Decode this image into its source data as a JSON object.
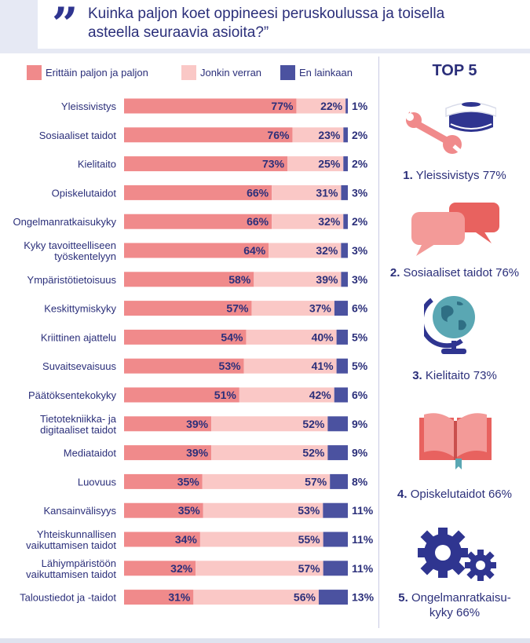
{
  "header": {
    "quote_glyph": "”",
    "title": "Kuinka paljon koet oppineesi peruskoulussa ja toisella asteella seuraavia asioita?”"
  },
  "colors": {
    "a_lot": "#f08a8b",
    "some": "#fac8c6",
    "none": "#4b52a0",
    "text": "#2b2f7a"
  },
  "legend": {
    "a_lot": "Erittäin paljon ja paljon",
    "some": "Jonkin verran",
    "none": "En lainkaan"
  },
  "top5": {
    "title": "TOP 5",
    "items": [
      {
        "rank": "1.",
        "text": "Yleissivistys 77%",
        "icon": "wrench-and-graduation-cap-icon"
      },
      {
        "rank": "2.",
        "text": "Sosiaaliset taidot 76%",
        "icon": "speech-bubbles-icon"
      },
      {
        "rank": "3.",
        "text": "Kielitaito 73%",
        "icon": "globe-icon"
      },
      {
        "rank": "4.",
        "text": "Opiskelutaidot 66%",
        "icon": "open-book-icon"
      },
      {
        "rank": "5.",
        "text": "Ongelmanratkaisu-",
        "text2": "kyky 66%",
        "icon": "gears-icon"
      }
    ]
  },
  "chart_data": {
    "type": "bar",
    "orientation": "horizontal",
    "stacked": true,
    "unit": "%",
    "categories": [
      [
        "Yleissivistys"
      ],
      [
        "Sosiaaliset taidot"
      ],
      [
        "Kielitaito"
      ],
      [
        "Opiskelutaidot"
      ],
      [
        "Ongelmanratkaisukyky"
      ],
      [
        "Kyky tavoitteelliseen",
        "työskentelyyn"
      ],
      [
        "Ympäristötietoisuus"
      ],
      [
        "Keskittymiskyky"
      ],
      [
        "Kriittinen ajattelu"
      ],
      [
        "Suvaitsevaisuus"
      ],
      [
        "Päätöksentekokyky"
      ],
      [
        "Tietotekniikka- ja",
        "digitaaliset taidot"
      ],
      [
        "Mediataidot"
      ],
      [
        "Luovuus"
      ],
      [
        "Kansainvälisyys"
      ],
      [
        "Yhteiskunnallisen",
        "vaikuttamisen taidot"
      ],
      [
        "Lähiympäristöön",
        "vaikuttamisen taidot"
      ],
      [
        "Taloustiedot ja -taidot"
      ]
    ],
    "series": [
      {
        "name": "Erittäin paljon ja paljon",
        "values": [
          77,
          76,
          73,
          66,
          66,
          64,
          58,
          57,
          54,
          53,
          51,
          39,
          39,
          35,
          35,
          34,
          32,
          31
        ]
      },
      {
        "name": "Jonkin verran",
        "values": [
          22,
          23,
          25,
          31,
          32,
          32,
          39,
          37,
          40,
          41,
          42,
          52,
          52,
          57,
          53,
          55,
          57,
          56
        ]
      },
      {
        "name": "En lainkaan",
        "values": [
          1,
          2,
          2,
          3,
          2,
          3,
          3,
          6,
          5,
          5,
          6,
          9,
          9,
          8,
          11,
          11,
          11,
          13
        ]
      }
    ],
    "legend_position": "top",
    "grid": false
  }
}
